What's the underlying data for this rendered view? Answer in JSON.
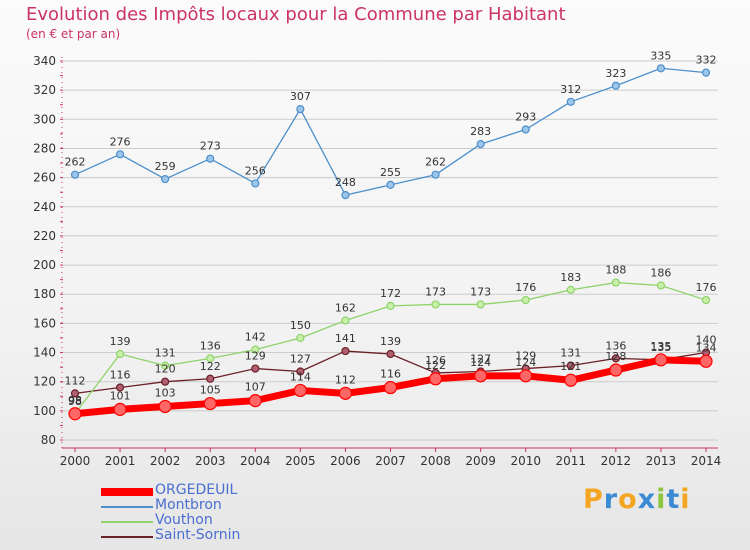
{
  "header": {
    "title": "Evolution des Impôts locaux pour la Commune par Habitant",
    "subtitle": "(en € et par an)"
  },
  "colors": {
    "title": "#cc3366",
    "grid": "#cccccc",
    "axis": "#cc3366",
    "ORGEDEUIL": "#ff0000",
    "Montbron": "#4d8fca",
    "Vouthon": "#8fd36a",
    "Saint-Sornin": "#6b1f27"
  },
  "logo": {
    "letters": [
      "P",
      "r",
      "o",
      "x",
      "i",
      "t",
      "i"
    ],
    "colors": [
      "#f4a623",
      "#3b8bd4",
      "#f4a623",
      "#3b8bd4",
      "#8cc63f",
      "#3b8bd4",
      "#f4a623"
    ]
  },
  "chart_data": {
    "type": "line",
    "title": "Evolution des Impôts locaux pour la Commune par Habitant",
    "subtitle": "(en € et par an)",
    "categories": [
      "2000",
      "2001",
      "2002",
      "2003",
      "2004",
      "2005",
      "2006",
      "2007",
      "2008",
      "2009",
      "2010",
      "2011",
      "2012",
      "2013",
      "2014"
    ],
    "ylim": [
      80,
      340
    ],
    "yticks": [
      80,
      100,
      120,
      140,
      160,
      180,
      200,
      220,
      240,
      260,
      280,
      300,
      320,
      340
    ],
    "grid": true,
    "legend_position": "bottom-left",
    "series": [
      {
        "name": "ORGEDEUIL",
        "values": [
          98,
          101,
          103,
          105,
          107,
          114,
          112,
          116,
          122,
          124,
          124,
          121,
          128,
          135,
          134
        ]
      },
      {
        "name": "Montbron",
        "values": [
          262,
          276,
          259,
          273,
          256,
          307,
          248,
          255,
          262,
          283,
          293,
          312,
          323,
          335,
          332
        ]
      },
      {
        "name": "Vouthon",
        "values": [
          98,
          139,
          131,
          136,
          142,
          150,
          162,
          172,
          173,
          173,
          176,
          183,
          188,
          186,
          176
        ]
      },
      {
        "name": "Saint-Sornin",
        "values": [
          112,
          116,
          120,
          122,
          129,
          127,
          141,
          139,
          126,
          127,
          129,
          131,
          136,
          135,
          140
        ]
      }
    ]
  }
}
